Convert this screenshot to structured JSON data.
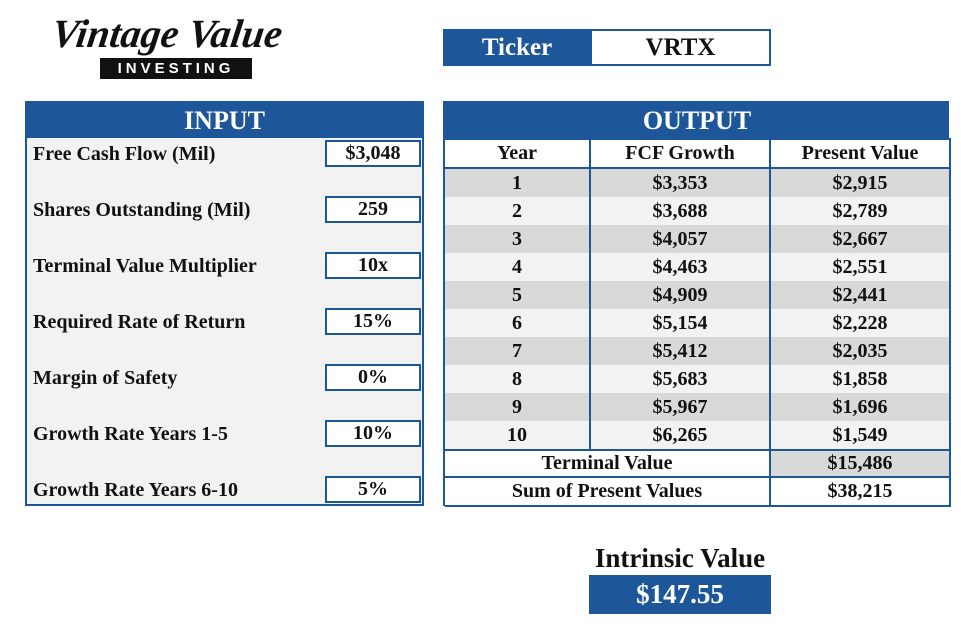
{
  "logo": {
    "title": "Vintage Value",
    "subtitle": "INVESTING"
  },
  "ticker": {
    "label": "Ticker",
    "value": "VRTX"
  },
  "input": {
    "title": "INPUT",
    "rows": [
      [
        "Free Cash Flow (Mil)",
        "$3,048"
      ],
      [
        "Shares Outstanding (Mil)",
        "259"
      ],
      [
        "Terminal Value Multiplier",
        "10x"
      ],
      [
        "Required Rate of Return",
        "15%"
      ],
      [
        "Margin of Safety",
        "0%"
      ],
      [
        "Growth Rate Years 1-5",
        "10%"
      ],
      [
        "Growth Rate Years 6-10",
        "5%"
      ]
    ]
  },
  "output": {
    "title": "OUTPUT",
    "columns": [
      "Year",
      "FCF Growth",
      "Present Value"
    ],
    "rows": [
      [
        "1",
        "$3,353",
        "$2,915"
      ],
      [
        "2",
        "$3,688",
        "$2,789"
      ],
      [
        "3",
        "$4,057",
        "$2,667"
      ],
      [
        "4",
        "$4,463",
        "$2,551"
      ],
      [
        "5",
        "$4,909",
        "$2,441"
      ],
      [
        "6",
        "$5,154",
        "$2,228"
      ],
      [
        "7",
        "$5,412",
        "$2,035"
      ],
      [
        "8",
        "$5,683",
        "$1,858"
      ],
      [
        "9",
        "$5,967",
        "$1,696"
      ],
      [
        "10",
        "$6,265",
        "$1,549"
      ]
    ],
    "terminal_value": {
      "label": "Terminal Value",
      "value": "$15,486"
    },
    "sum_present_values": {
      "label": "Sum of Present Values",
      "value": "$38,215"
    }
  },
  "intrinsic": {
    "label": "Intrinsic Value",
    "value": "$147.55"
  }
}
